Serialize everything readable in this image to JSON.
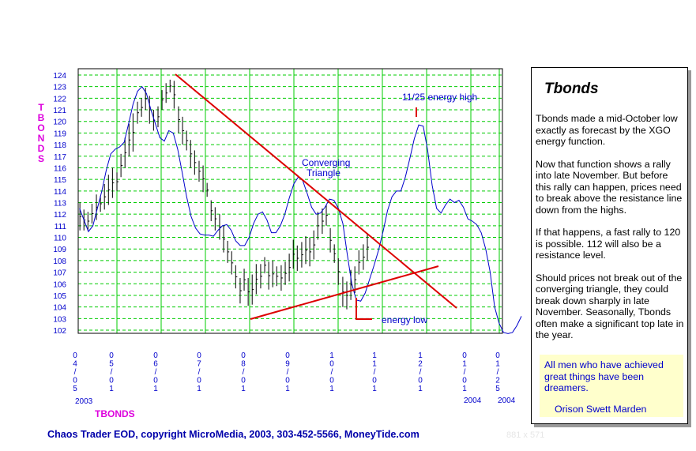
{
  "chart_data": {
    "type": "line",
    "ylabel": "TBONDS",
    "xlabel": "TBONDS",
    "ylim": [
      102,
      124
    ],
    "yticks": [
      102,
      103,
      104,
      105,
      106,
      107,
      108,
      109,
      110,
      111,
      112,
      113,
      114,
      115,
      116,
      117,
      118,
      119,
      120,
      121,
      122,
      123,
      124
    ],
    "grid": true,
    "xticks": [
      {
        "lines": [
          "0",
          "4",
          "/",
          "0",
          "5"
        ]
      },
      {
        "lines": [
          "0",
          "5",
          "/",
          "0",
          "1"
        ]
      },
      {
        "lines": [
          "0",
          "6",
          "/",
          "0",
          "1"
        ]
      },
      {
        "lines": [
          "0",
          "7",
          "/",
          "0",
          "1"
        ]
      },
      {
        "lines": [
          "0",
          "8",
          "/",
          "0",
          "1"
        ]
      },
      {
        "lines": [
          "0",
          "9",
          "/",
          "0",
          "1"
        ]
      },
      {
        "lines": [
          "1",
          "0",
          "/",
          "0",
          "1"
        ]
      },
      {
        "lines": [
          "1",
          "1",
          "/",
          "0",
          "1"
        ]
      },
      {
        "lines": [
          "1",
          "2",
          "/",
          "0",
          "1"
        ]
      },
      {
        "lines": [
          "0",
          "1",
          "/",
          "0",
          "1"
        ]
      },
      {
        "lines": [
          "0",
          "1",
          "/",
          "2",
          "5"
        ]
      }
    ],
    "year_labels": [
      "2003",
      "2004",
      "2004"
    ],
    "series": [
      {
        "name": "energy function",
        "color": "#0000cc",
        "x": [
          0,
          1,
          2,
          3,
          4,
          5,
          6,
          7,
          8,
          9,
          10,
          11,
          12,
          13,
          14,
          15,
          16,
          17,
          18,
          19,
          20,
          21,
          22,
          23,
          24,
          25,
          26,
          27,
          28,
          29,
          30,
          31,
          32,
          33,
          34,
          35,
          36,
          37,
          38,
          39,
          40,
          41,
          42,
          43,
          44,
          45,
          46,
          47,
          48,
          49,
          50,
          51,
          52,
          53,
          54,
          55,
          56,
          57,
          58,
          59,
          60,
          61,
          62,
          63,
          64,
          65,
          66,
          67,
          68,
          69,
          70,
          71,
          72,
          73,
          74,
          75,
          76,
          77,
          78,
          79,
          80,
          81,
          82,
          83,
          84,
          85,
          86,
          87,
          88,
          89,
          90,
          91,
          92,
          93,
          94,
          95,
          96,
          97,
          98,
          99
        ],
        "y": [
          112.5,
          111.5,
          110.5,
          111,
          112.5,
          114,
          115.8,
          117.2,
          117.6,
          117.8,
          118.2,
          119.8,
          121.5,
          122.6,
          123,
          122.4,
          121,
          119.8,
          118.6,
          118.3,
          119.2,
          119,
          117.6,
          115.6,
          113.5,
          111.8,
          110.8,
          110.3,
          110.2,
          110.2,
          110.1,
          110.6,
          111,
          111.1,
          110.6,
          109.7,
          109.3,
          109.3,
          110,
          111.2,
          112,
          112.2,
          111.5,
          110.4,
          110.4,
          111,
          112,
          113.4,
          114.6,
          115.2,
          114.9,
          113.8,
          112.6,
          112,
          112.1,
          112.6,
          113.3,
          113.2,
          112.5,
          111.2,
          108.5,
          106,
          104.6,
          104.5,
          105.2,
          106.4,
          107.6,
          108.9,
          110.5,
          112.3,
          113.5,
          114,
          114,
          115.2,
          116.8,
          118.5,
          119.7,
          119.6,
          117.5,
          114.5,
          112.5,
          112.1,
          112.8,
          113.3,
          113,
          113.2,
          112.6,
          111.6,
          111.4,
          111.1,
          110.4,
          109,
          107,
          104,
          102.6,
          101.8,
          101.7,
          101.8,
          102.4,
          103.2
        ]
      }
    ],
    "price_bars": {
      "color": "#000000",
      "x": [
        0.2,
        1.1,
        2,
        2.9,
        3.9,
        4.8,
        5.7,
        6.6,
        7.5,
        8.5,
        9.4,
        10.3,
        11.2,
        12.1,
        13.1,
        14,
        14.9,
        15.8,
        16.7,
        17.7,
        18.6,
        19.5,
        20.4,
        21.3,
        22.3,
        23.2,
        24.1,
        25,
        25.9,
        26.9,
        27.8,
        28.7,
        29.6,
        30.5,
        31.5,
        32.4,
        33.3,
        34.2,
        35.1,
        36.1,
        37,
        37.9,
        38.8,
        39.7,
        40.7,
        41.6,
        42.5,
        43.4,
        44.3,
        45.3,
        46.2,
        47.1,
        48,
        48.9,
        49.9,
        50.8,
        51.7,
        52.6,
        53.5,
        54.5,
        55.4,
        56.3,
        57.2,
        58.1,
        59.1,
        60,
        60.9,
        61.8,
        62.7,
        63.7,
        64.6
      ],
      "low": [
        110.6,
        110.6,
        110.6,
        111.2,
        111.5,
        112.2,
        112.4,
        112.8,
        113.4,
        114,
        115.2,
        116,
        117,
        117.4,
        119.8,
        120.4,
        121,
        119.8,
        119.2,
        119.5,
        121,
        121.6,
        122.5,
        121.1,
        119,
        118,
        117.5,
        116,
        115.4,
        114.8,
        113.9,
        113.5,
        111.4,
        110.6,
        109.8,
        108.7,
        107.8,
        106.8,
        105.6,
        104.3,
        105.4,
        104.1,
        104.2,
        105.1,
        105.6,
        106.9,
        105.5,
        105.7,
        105.8,
        105.4,
        105.9,
        106.2,
        107.3,
        107.1,
        107.4,
        107.7,
        107.5,
        108.1,
        109.8,
        110.3,
        111,
        108.7,
        107.8,
        105.9,
        104,
        103.8,
        104.6,
        105.2,
        106.8,
        107.2,
        108
      ],
      "high": [
        113,
        112.4,
        112.2,
        112.9,
        113.7,
        113.6,
        114.6,
        115.4,
        116,
        115.6,
        117.2,
        118.6,
        119.8,
        120.7,
        121.7,
        122,
        122.9,
        122.2,
        121,
        121.3,
        122.7,
        123.3,
        123.6,
        123.5,
        121.3,
        120.4,
        119.2,
        118.4,
        117.5,
        116.6,
        116.2,
        114.7,
        113.2,
        112.6,
        112,
        111,
        109.7,
        108.8,
        107.6,
        106.5,
        107.3,
        106.5,
        106.8,
        107.7,
        107.7,
        108.3,
        107.9,
        108,
        107.5,
        107.6,
        107.9,
        108.6,
        109.8,
        109.3,
        109.6,
        110.1,
        110,
        110.6,
        112.2,
        112.5,
        112.8,
        110.8,
        109.4,
        108.2,
        106.6,
        106.2,
        107.2,
        107.5,
        108.9,
        109.4,
        110.3
      ]
    },
    "annotations": {
      "converging": "Converging\nTriangle",
      "energy_high": "11/25 energy high",
      "energy_low": "energy low"
    }
  },
  "panel": {
    "title": "Tbonds",
    "paragraphs": [
      "Tbonds made a mid-October low exactly as forecast by the XGO energy function.",
      "Now that function shows a rally into late November. But before this rally can happen, prices need to break above the resistance line down from the highs.",
      "If that happens, a fast rally to 120 is possible. 112 will also be a resistance level.",
      "Should prices not break out of the converging triangle, they could break down sharply in late November. Seasonally, Tbonds often make a significant top late in the year."
    ],
    "quote": "All men who have achieved great things have been dreamers.",
    "quote_author": "Orison Swett Marden"
  },
  "footer": "Chaos Trader EOD, copyright MicroMedia, 2003, 303-452-5566, MoneyTide.com",
  "dimensions_label": "881 x 571"
}
